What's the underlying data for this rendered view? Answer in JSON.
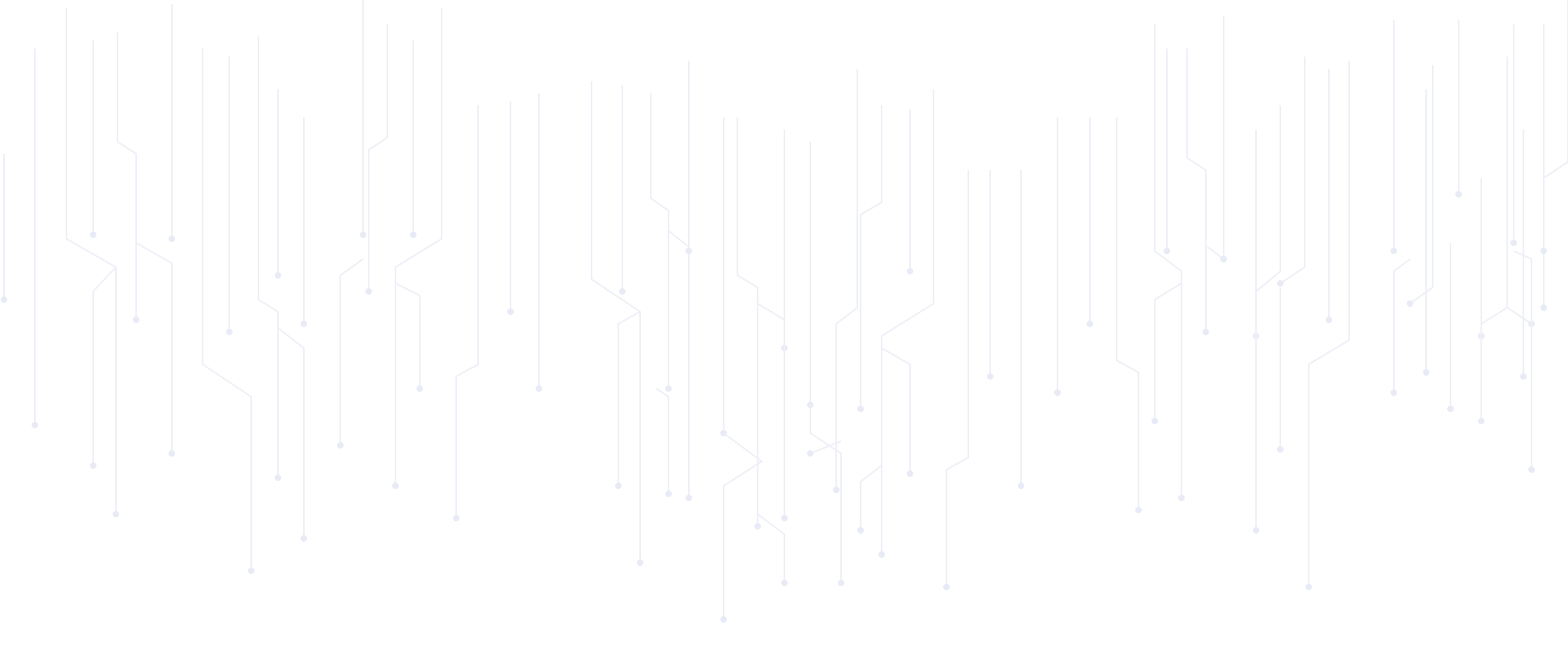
{
  "colors": {
    "background": "#ffffff",
    "circuit_line": "#eef0f7",
    "circuit_node": "#e8ebf5"
  },
  "pattern": "circuit-lines"
}
